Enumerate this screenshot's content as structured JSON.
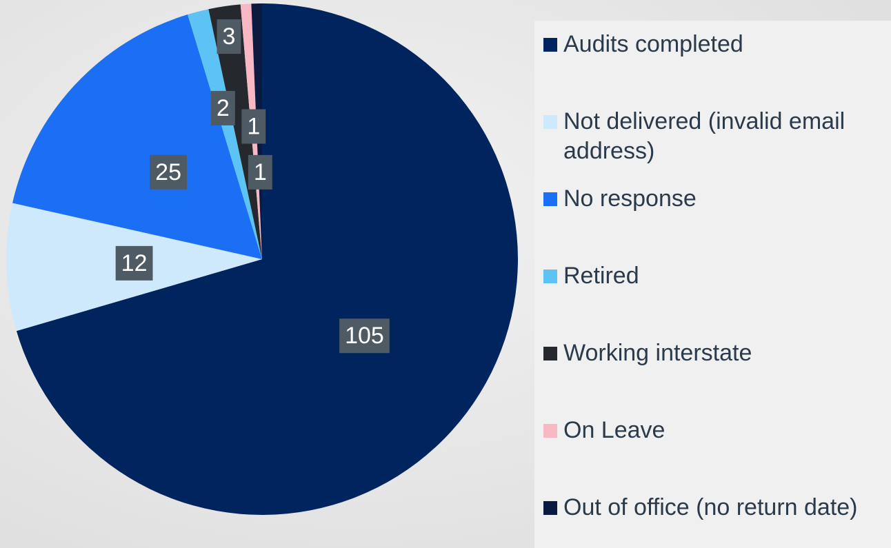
{
  "chart_data": {
    "type": "pie",
    "categories": [
      "Audits completed",
      "Not delivered (invalid email address)",
      "No response",
      "Retired",
      "Working interstate",
      "On Leave",
      "Out of office (no return date)"
    ],
    "values": [
      105,
      12,
      25,
      2,
      3,
      1,
      1
    ],
    "colors": [
      "#00245e",
      "#cde9fb",
      "#1a6ff4",
      "#5cc3f4",
      "#25292d",
      "#f8b8c3",
      "#0b1a40"
    ],
    "legend": "right"
  }
}
